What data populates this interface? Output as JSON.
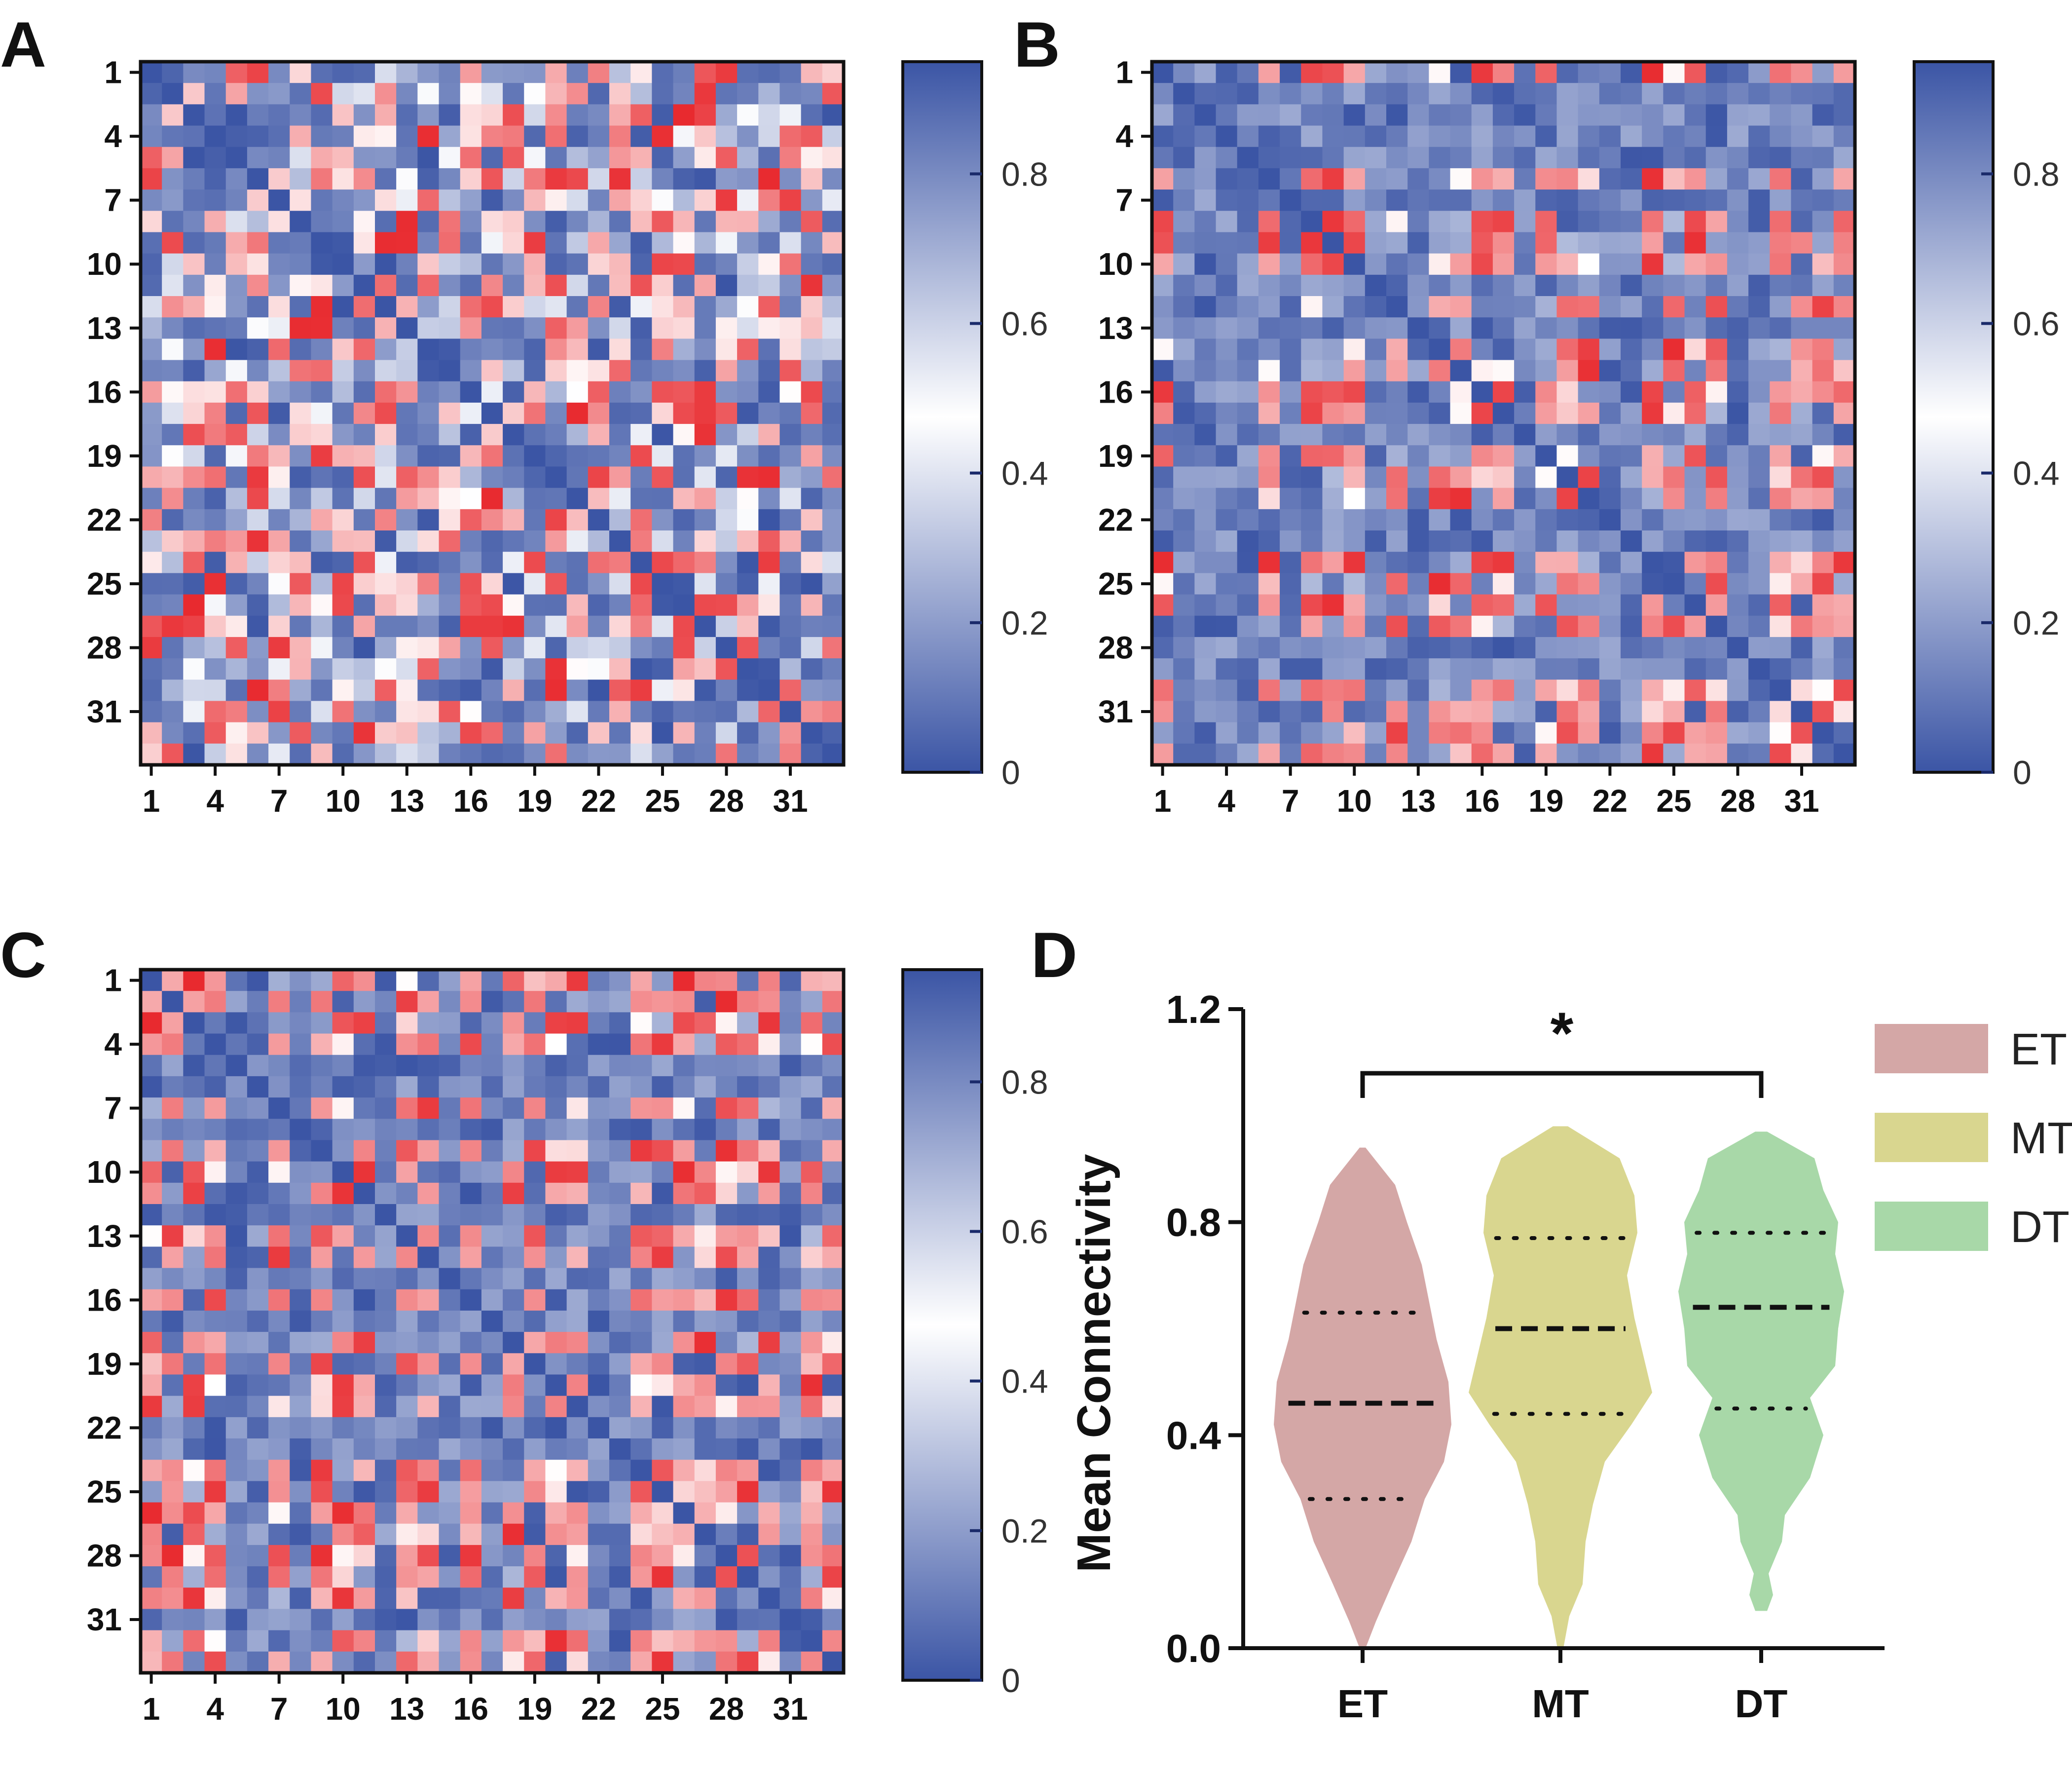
{
  "panels": {
    "A": {
      "label": "A",
      "seed": 11,
      "structure": "weak"
    },
    "B": {
      "label": "B",
      "seed": 29,
      "structure": "strong"
    },
    "C": {
      "label": "C",
      "seed": 47,
      "structure": "strong"
    },
    "D": {
      "label": "D"
    }
  },
  "chart_data": [
    {
      "type": "heatmap",
      "panel": "A",
      "matrix_size": 33,
      "xticks": [
        "1",
        "4",
        "7",
        "10",
        "13",
        "16",
        "19",
        "22",
        "25",
        "28",
        "31"
      ],
      "yticks": [
        "1",
        "4",
        "7",
        "10",
        "13",
        "16",
        "19",
        "22",
        "25",
        "28",
        "31"
      ],
      "colorbar": {
        "ticks": [
          "0",
          "0.2",
          "0.4",
          "0.6",
          "0.8"
        ],
        "range": [
          0,
          0.95
        ],
        "low_color": "#3B55A5",
        "mid_color": "#FFFFFF",
        "high_color": "#E8292E"
      }
    },
    {
      "type": "heatmap",
      "panel": "B",
      "matrix_size": 33,
      "xticks": [
        "1",
        "4",
        "7",
        "10",
        "13",
        "16",
        "19",
        "22",
        "25",
        "28",
        "31"
      ],
      "yticks": [
        "1",
        "4",
        "7",
        "10",
        "13",
        "16",
        "19",
        "22",
        "25",
        "28",
        "31"
      ],
      "colorbar": {
        "ticks": [
          "0",
          "0.2",
          "0.4",
          "0.6",
          "0.8"
        ],
        "range": [
          0,
          0.95
        ],
        "low_color": "#3B55A5",
        "mid_color": "#FFFFFF",
        "high_color": "#E8292E"
      }
    },
    {
      "type": "heatmap",
      "panel": "C",
      "matrix_size": 33,
      "xticks": [
        "1",
        "4",
        "7",
        "10",
        "13",
        "16",
        "19",
        "22",
        "25",
        "28",
        "31"
      ],
      "yticks": [
        "1",
        "4",
        "7",
        "10",
        "13",
        "16",
        "19",
        "22",
        "25",
        "28",
        "31"
      ],
      "colorbar": {
        "ticks": [
          "0",
          "0.2",
          "0.4",
          "0.6",
          "0.8"
        ],
        "range": [
          0,
          0.95
        ],
        "low_color": "#3B55A5",
        "mid_color": "#FFFFFF",
        "high_color": "#E8292E"
      }
    },
    {
      "type": "violin",
      "panel": "D",
      "ylabel": "Mean Connectivity",
      "ylim": [
        0,
        1.2
      ],
      "yticks": [
        "0.0",
        "0.4",
        "0.8",
        "1.2"
      ],
      "yticks_values": [
        0,
        0.4,
        0.8,
        1.2
      ],
      "categories": [
        "ET",
        "MT",
        "DT"
      ],
      "significance": {
        "from": "ET",
        "to": "DT",
        "label": "*"
      },
      "series": [
        {
          "name": "ET",
          "color": "#D4A7A6",
          "min": 0.0,
          "max": 0.94,
          "q1": 0.28,
          "median": 0.46,
          "q3": 0.63,
          "density": [
            [
              0.0,
              0.02
            ],
            [
              0.05,
              0.09
            ],
            [
              0.12,
              0.2
            ],
            [
              0.2,
              0.33
            ],
            [
              0.28,
              0.42
            ],
            [
              0.35,
              0.55
            ],
            [
              0.42,
              0.6
            ],
            [
              0.5,
              0.58
            ],
            [
              0.58,
              0.5
            ],
            [
              0.65,
              0.45
            ],
            [
              0.72,
              0.4
            ],
            [
              0.8,
              0.3
            ],
            [
              0.87,
              0.22
            ],
            [
              0.94,
              0.02
            ]
          ]
        },
        {
          "name": "MT",
          "color": "#D9D68F",
          "min": 0.0,
          "max": 0.98,
          "q1": 0.44,
          "median": 0.6,
          "q3": 0.77,
          "density": [
            [
              0.0,
              0.02
            ],
            [
              0.06,
              0.06
            ],
            [
              0.12,
              0.15
            ],
            [
              0.2,
              0.17
            ],
            [
              0.27,
              0.22
            ],
            [
              0.35,
              0.3
            ],
            [
              0.42,
              0.48
            ],
            [
              0.48,
              0.62
            ],
            [
              0.55,
              0.56
            ],
            [
              0.62,
              0.5
            ],
            [
              0.7,
              0.45
            ],
            [
              0.78,
              0.52
            ],
            [
              0.85,
              0.5
            ],
            [
              0.92,
              0.4
            ],
            [
              0.98,
              0.05
            ]
          ]
        },
        {
          "name": "DT",
          "color": "#A8D8A8",
          "min": 0.07,
          "max": 0.97,
          "q1": 0.45,
          "median": 0.64,
          "q3": 0.78,
          "density": [
            [
              0.07,
              0.04
            ],
            [
              0.1,
              0.08
            ],
            [
              0.14,
              0.05
            ],
            [
              0.2,
              0.14
            ],
            [
              0.25,
              0.16
            ],
            [
              0.32,
              0.33
            ],
            [
              0.4,
              0.42
            ],
            [
              0.47,
              0.33
            ],
            [
              0.53,
              0.5
            ],
            [
              0.6,
              0.52
            ],
            [
              0.67,
              0.56
            ],
            [
              0.74,
              0.5
            ],
            [
              0.8,
              0.52
            ],
            [
              0.86,
              0.42
            ],
            [
              0.92,
              0.36
            ],
            [
              0.97,
              0.04
            ]
          ]
        }
      ],
      "legend": [
        {
          "label": "ET",
          "color": "#D4A7A6"
        },
        {
          "label": "MT",
          "color": "#D9D68F"
        },
        {
          "label": "DT",
          "color": "#A8D8A8"
        }
      ]
    }
  ]
}
